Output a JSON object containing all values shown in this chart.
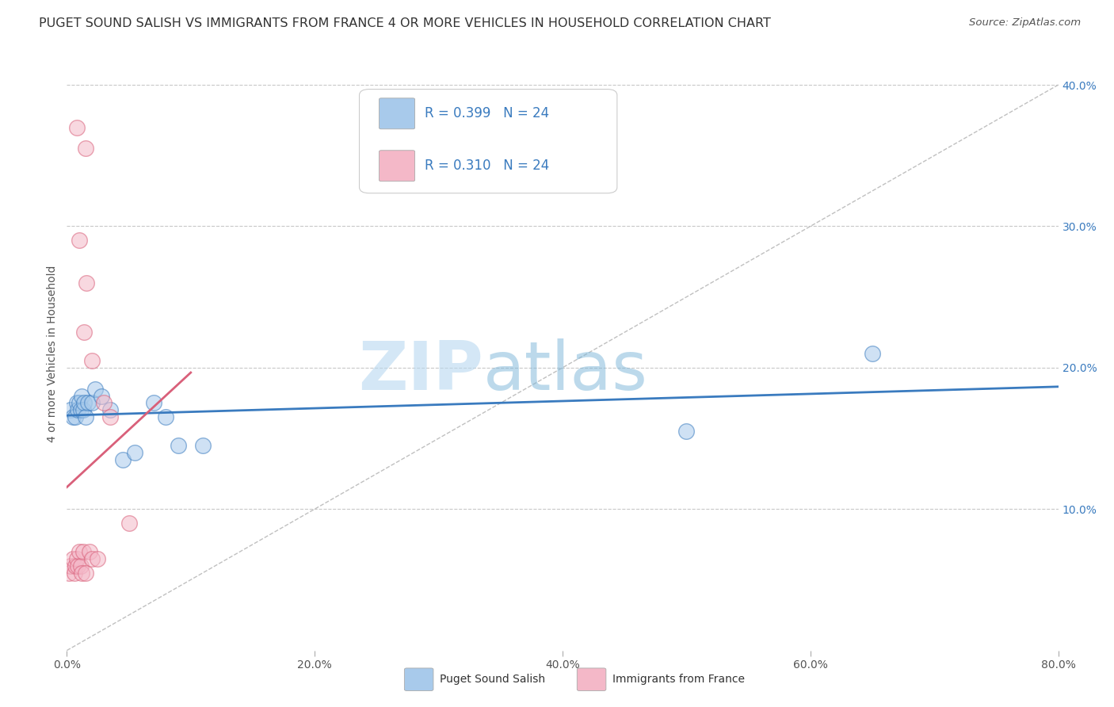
{
  "title": "PUGET SOUND SALISH VS IMMIGRANTS FROM FRANCE 4 OR MORE VEHICLES IN HOUSEHOLD CORRELATION CHART",
  "source": "Source: ZipAtlas.com",
  "ylabel": "4 or more Vehicles in Household",
  "legend1_label": "Puget Sound Salish",
  "legend2_label": "Immigrants from France",
  "R1": "0.399",
  "N1": "24",
  "R2": "0.310",
  "N2": "24",
  "watermark_zip": "ZIP",
  "watermark_atlas": "atlas",
  "blue_color": "#a8caeb",
  "pink_color": "#f4b8c8",
  "blue_line_color": "#3a7bbf",
  "pink_line_color": "#d9607a",
  "blue_scatter": [
    [
      0.3,
      17.0
    ],
    [
      0.5,
      16.5
    ],
    [
      0.7,
      16.5
    ],
    [
      0.8,
      17.5
    ],
    [
      0.9,
      17.0
    ],
    [
      1.0,
      17.5
    ],
    [
      1.1,
      17.0
    ],
    [
      1.2,
      18.0
    ],
    [
      1.3,
      17.0
    ],
    [
      1.4,
      17.5
    ],
    [
      1.5,
      16.5
    ],
    [
      1.7,
      17.5
    ],
    [
      2.0,
      17.5
    ],
    [
      2.3,
      18.5
    ],
    [
      2.8,
      18.0
    ],
    [
      3.5,
      17.0
    ],
    [
      4.5,
      13.5
    ],
    [
      5.5,
      14.0
    ],
    [
      7.0,
      17.5
    ],
    [
      8.0,
      16.5
    ],
    [
      9.0,
      14.5
    ],
    [
      11.0,
      14.5
    ],
    [
      50.0,
      15.5
    ],
    [
      65.0,
      21.0
    ]
  ],
  "pink_scatter": [
    [
      0.2,
      5.5
    ],
    [
      0.3,
      6.0
    ],
    [
      0.5,
      6.5
    ],
    [
      0.6,
      5.5
    ],
    [
      0.7,
      6.0
    ],
    [
      0.8,
      6.5
    ],
    [
      0.9,
      6.0
    ],
    [
      1.0,
      7.0
    ],
    [
      1.1,
      6.0
    ],
    [
      1.2,
      5.5
    ],
    [
      1.3,
      7.0
    ],
    [
      1.5,
      5.5
    ],
    [
      1.8,
      7.0
    ],
    [
      2.0,
      6.5
    ],
    [
      2.5,
      6.5
    ],
    [
      3.0,
      17.5
    ],
    [
      3.5,
      16.5
    ],
    [
      5.0,
      9.0
    ],
    [
      1.4,
      22.5
    ],
    [
      2.0,
      20.5
    ],
    [
      1.6,
      26.0
    ],
    [
      1.0,
      29.0
    ],
    [
      1.5,
      35.5
    ],
    [
      0.8,
      37.0
    ]
  ],
  "xlim": [
    0,
    80
  ],
  "ylim": [
    0,
    42
  ],
  "xtick_vals": [
    0,
    20,
    40,
    60,
    80
  ],
  "xtick_labels": [
    "0.0%",
    "20.0%",
    "40.0%",
    "60.0%",
    "80.0%"
  ],
  "ytick_vals": [
    10,
    20,
    30,
    40
  ],
  "ytick_labels_right": [
    "10.0%",
    "20.0%",
    "30.0%",
    "40.0%"
  ],
  "grid_color": "#c8c8c8",
  "bg_color": "#ffffff",
  "title_color": "#333333",
  "title_fontsize": 11.5,
  "label_fontsize": 10,
  "tick_fontsize": 10,
  "source_fontsize": 9.5
}
